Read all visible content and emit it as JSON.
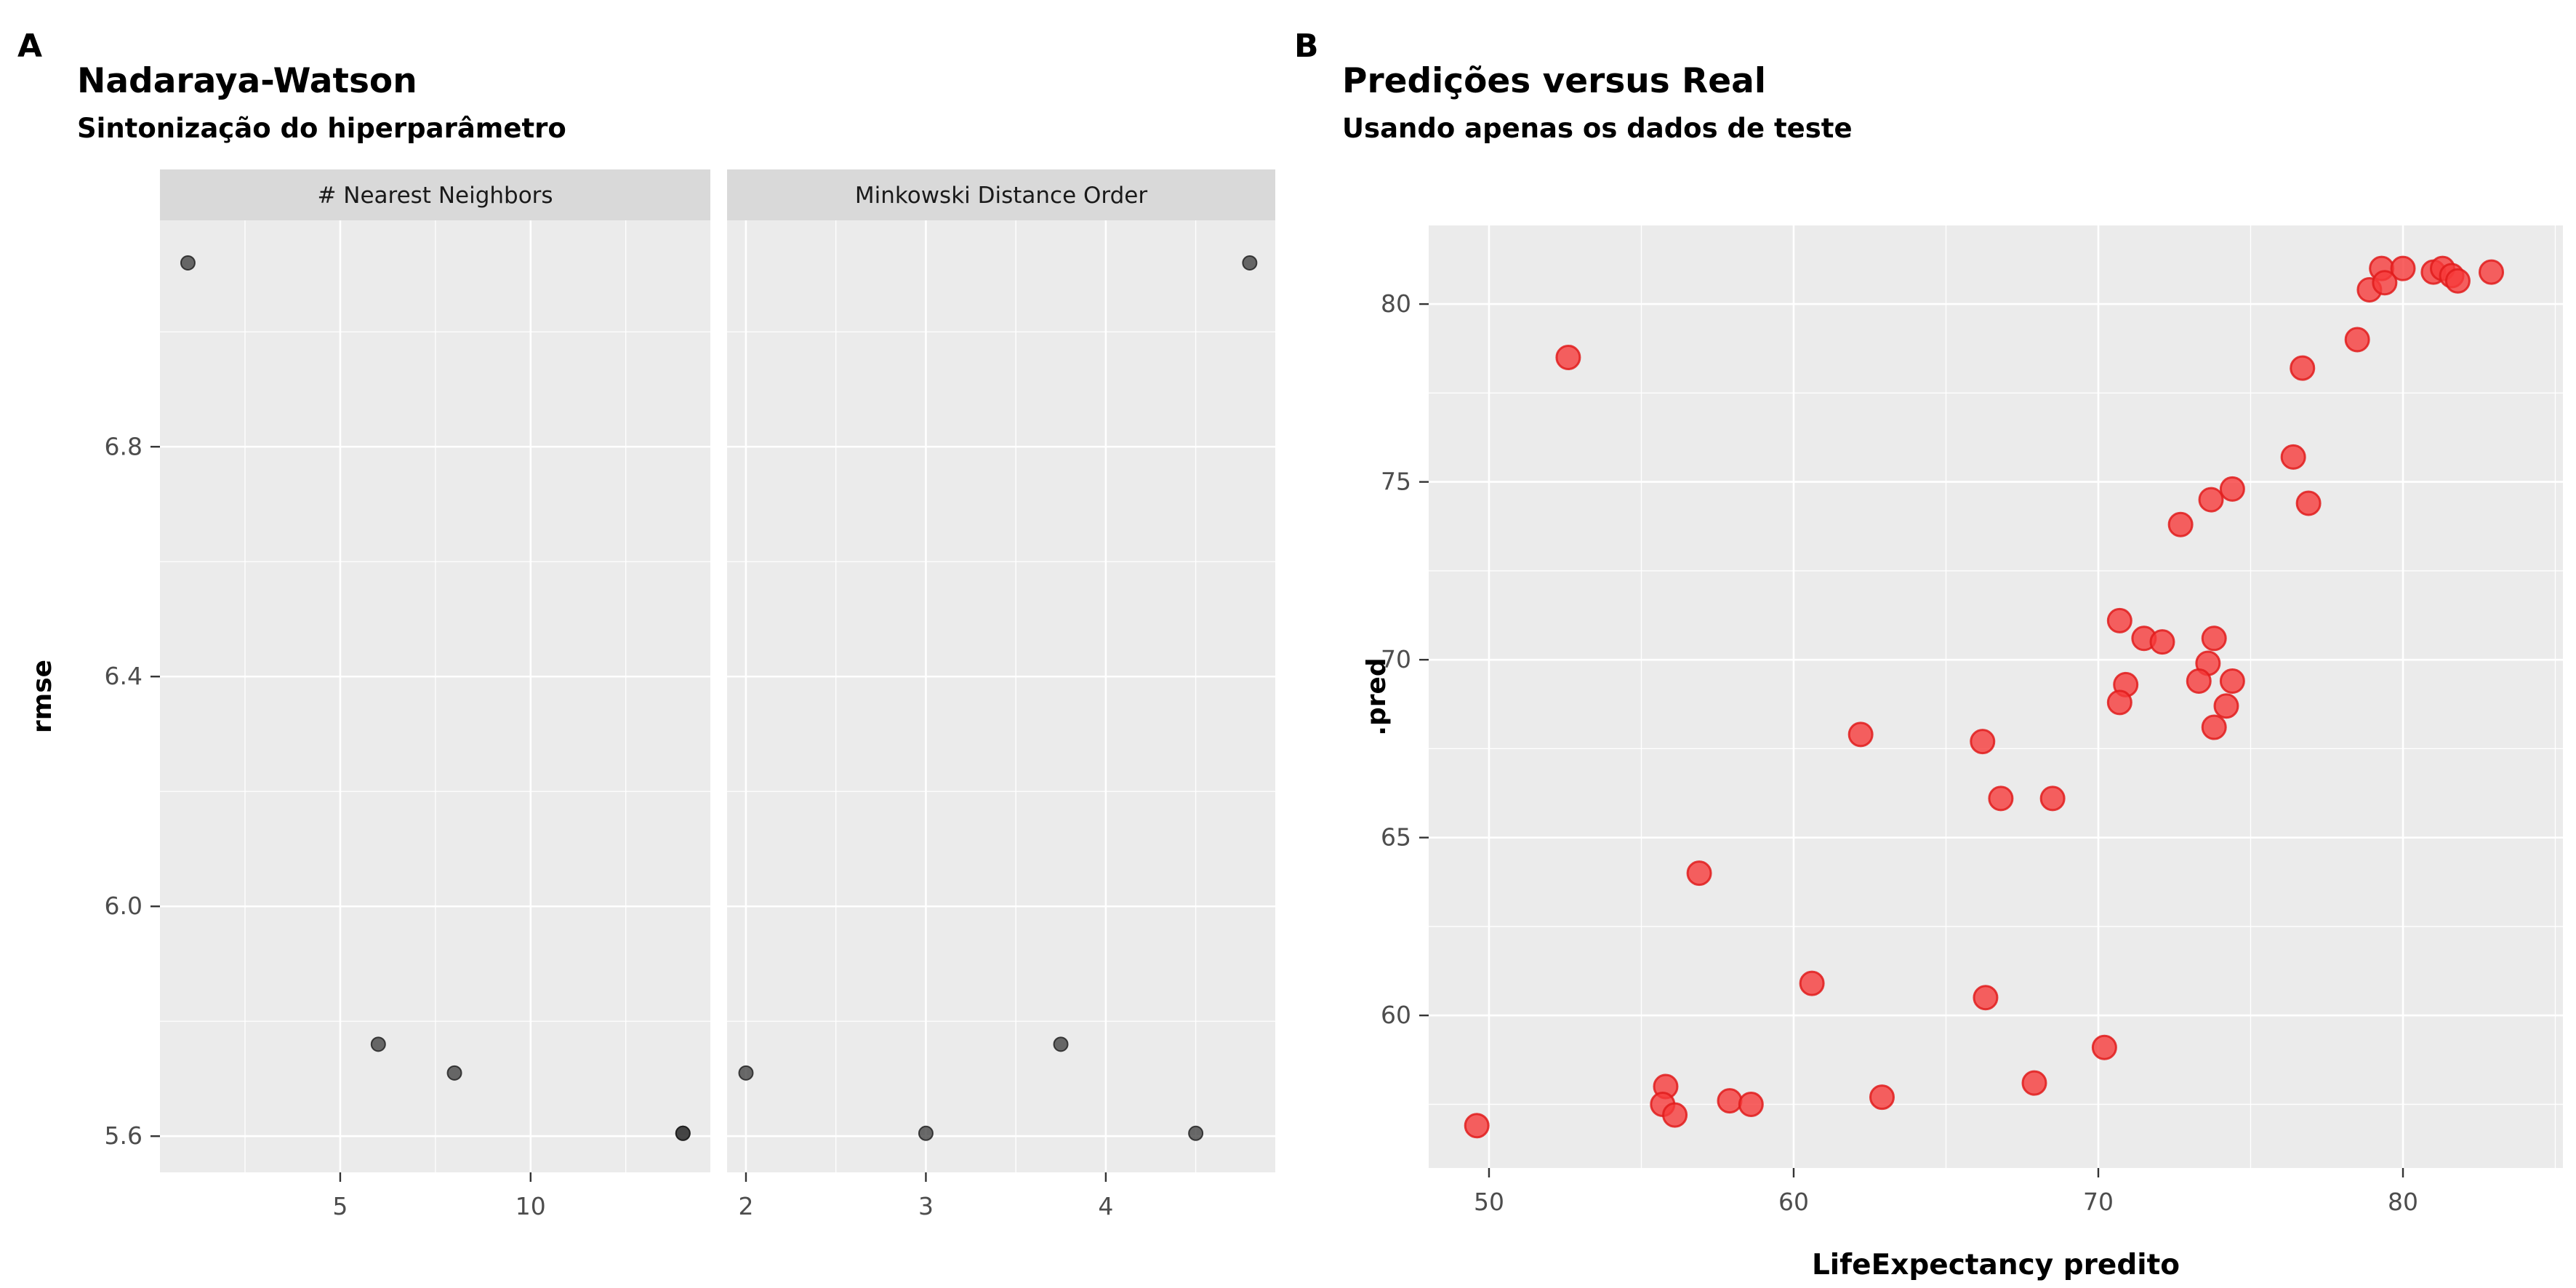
{
  "figure": {
    "background": "#ffffff",
    "panel_bg": "#EBEBEB",
    "strip_bg": "#D9D9D9",
    "grid_color": "#FFFFFF",
    "tick_color": "#333333",
    "tick_label_color": "#4D4D4D",
    "point_color_a": "#3a3a3a",
    "point_color_b": "#f63b3b"
  },
  "chart_data": [
    {
      "type": "scatter",
      "panel_label": "A",
      "title": "Nadaraya-Watson",
      "subtitle": "Sintonização do hiperparâmetro",
      "xlabel": "",
      "ylabel": "rmse",
      "legend": "none",
      "grid": "on",
      "ylim": [
        5.537,
        7.194
      ],
      "y_ticks": [
        6.8,
        6.4,
        6.0,
        5.6
      ],
      "y_tick_labels": [
        "6.8",
        "6.4",
        "6.0",
        "5.6"
      ],
      "y_minor": [
        7.0,
        6.6,
        6.2,
        5.8
      ],
      "facets": [
        {
          "label": "# Nearest Neighbors",
          "xlim": [
            0.266,
            14.72
          ],
          "x_ticks": [
            5,
            10
          ],
          "x_tick_labels": [
            "5",
            "10"
          ],
          "x_minor": [
            2.5,
            7.5,
            12.5
          ],
          "points": [
            [
              1,
              7.12
            ],
            [
              6,
              5.76
            ],
            [
              8,
              5.71
            ],
            [
              14,
              5.605
            ],
            [
              14,
              5.605
            ]
          ]
        },
        {
          "label": "Minkowski Distance Order",
          "xlim": [
            1.895,
            4.942
          ],
          "x_ticks": [
            2,
            3,
            4
          ],
          "x_tick_labels": [
            "2",
            "3",
            "4"
          ],
          "x_minor": [
            2.5,
            3.5,
            4.5
          ],
          "points": [
            [
              2,
              5.71
            ],
            [
              3,
              5.605
            ],
            [
              3.75,
              5.76
            ],
            [
              4.5,
              5.605
            ],
            [
              4.8,
              7.12
            ]
          ]
        }
      ]
    },
    {
      "type": "scatter",
      "panel_label": "B",
      "title": "Predições versus Real",
      "subtitle": "Usando apenas os dados de teste",
      "xlabel": "LifeExpectancy predito",
      "ylabel": ".pred",
      "legend": "none",
      "grid": "on",
      "xlim": [
        48.02,
        85.25
      ],
      "ylim": [
        55.71,
        82.21
      ],
      "x_ticks": [
        50,
        60,
        70,
        80
      ],
      "x_tick_labels": [
        "50",
        "60",
        "70",
        "80"
      ],
      "x_minor": [
        55,
        65,
        75,
        85
      ],
      "y_ticks": [
        80,
        75,
        70,
        65,
        60
      ],
      "y_tick_labels": [
        "80",
        "75",
        "70",
        "65",
        "60"
      ],
      "y_minor": [
        77.5,
        72.5,
        67.5,
        62.5,
        57.5
      ],
      "points": [
        [
          49.6,
          56.9
        ],
        [
          52.6,
          78.5
        ],
        [
          55.8,
          58.0
        ],
        [
          55.7,
          57.5
        ],
        [
          56.1,
          57.2
        ],
        [
          57.9,
          57.6
        ],
        [
          58.6,
          57.5
        ],
        [
          56.9,
          64.0
        ],
        [
          60.6,
          60.9
        ],
        [
          62.9,
          57.7
        ],
        [
          62.2,
          67.9
        ],
        [
          66.2,
          67.7
        ],
        [
          66.8,
          66.1
        ],
        [
          68.5,
          66.1
        ],
        [
          66.3,
          60.5
        ],
        [
          70.2,
          59.1
        ],
        [
          67.9,
          58.1
        ],
        [
          70.7,
          71.1
        ],
        [
          71.5,
          70.6
        ],
        [
          72.1,
          70.5
        ],
        [
          73.8,
          70.6
        ],
        [
          73.6,
          69.9
        ],
        [
          73.3,
          69.4
        ],
        [
          74.4,
          69.4
        ],
        [
          70.9,
          69.3
        ],
        [
          70.7,
          68.8
        ],
        [
          74.2,
          68.7
        ],
        [
          73.8,
          68.1
        ],
        [
          72.7,
          73.8
        ],
        [
          73.7,
          74.5
        ],
        [
          74.4,
          74.8
        ],
        [
          76.9,
          74.4
        ],
        [
          76.4,
          75.7
        ],
        [
          76.7,
          78.2
        ],
        [
          78.5,
          79.0
        ],
        [
          79.3,
          81.0
        ],
        [
          80.0,
          81.0
        ],
        [
          78.9,
          80.4
        ],
        [
          79.4,
          80.6
        ],
        [
          81.0,
          80.9
        ],
        [
          81.3,
          81.0
        ],
        [
          81.6,
          80.8
        ],
        [
          81.8,
          80.65
        ],
        [
          82.9,
          80.9
        ]
      ]
    }
  ]
}
